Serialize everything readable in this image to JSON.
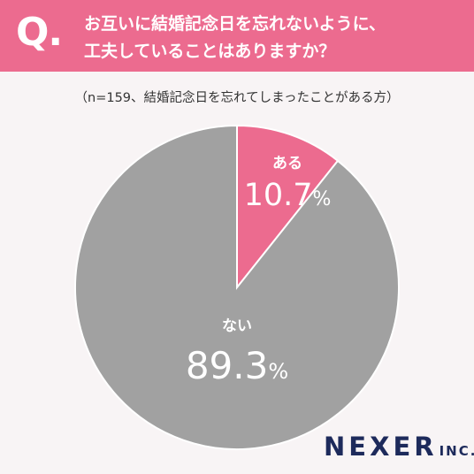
{
  "header": {
    "q_mark": "Q.",
    "question_line1": "お互いに結婚記念日を忘れないように、",
    "question_line2": "工夫していることはありますか？"
  },
  "subtitle": "（n=159、結婚記念日を忘れてしまったことがある方）",
  "chart_data": {
    "type": "pie",
    "title": "お互いに結婚記念日を忘れないように、工夫していることはありますか？",
    "subtitle": "（n=159、結婚記念日を忘れてしまったことがある方）",
    "slices": [
      {
        "label": "ある",
        "value": 10.7,
        "value_text": "10.7",
        "unit": "%",
        "color": "#ec6b8f"
      },
      {
        "label": "ない",
        "value": 89.3,
        "value_text": "89.3",
        "unit": "%",
        "color": "#a1a1a1"
      }
    ],
    "start_angle": "12 o'clock",
    "direction": "clockwise"
  },
  "logo": {
    "main": "NEXER",
    "suffix": "INC."
  },
  "colors": {
    "header": "#ec6b8f",
    "background": "#f8f4f5",
    "logo": "#1d2a5b"
  }
}
